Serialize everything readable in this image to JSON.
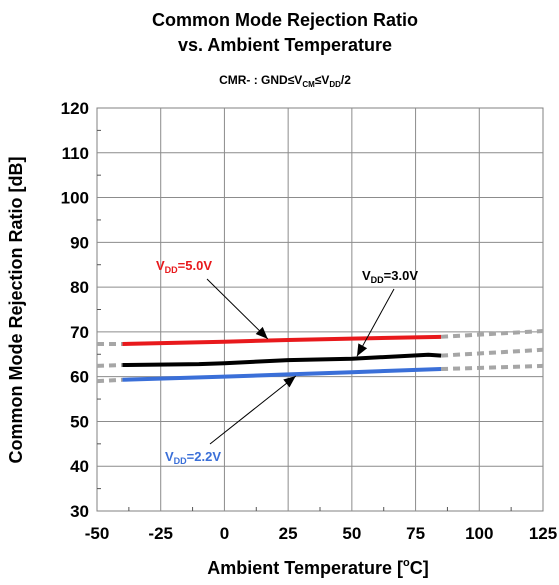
{
  "chart_data": {
    "type": "line",
    "title_line1": "Common Mode Rejection Ratio",
    "title_line2": "vs. Ambient Temperature",
    "subtitle": {
      "prefix": "CMR- : GND≤V",
      "sub1": "CM",
      "mid": "≤V",
      "sub2": "DD",
      "suffix": "/2"
    },
    "xlabel": "Ambient Temperature [°C]",
    "xlabel_parts": {
      "main": "Ambient Temperature [",
      "sup": "o",
      "end": "C]"
    },
    "ylabel": "Common Mode Rejection Ratio [dB]",
    "xlim": [
      -50,
      125
    ],
    "ylim": [
      30,
      120
    ],
    "xticks": [
      -50,
      -25,
      0,
      25,
      50,
      75,
      100,
      125
    ],
    "yticks": [
      30,
      40,
      50,
      60,
      70,
      80,
      90,
      100,
      110,
      120
    ],
    "grid": true,
    "series": [
      {
        "name": "VDD=5.0V",
        "label_parts": {
          "v": "V",
          "sub": "DD",
          "rest": "=5.0V"
        },
        "color": "#e8191c",
        "x": [
          -40,
          0,
          25,
          50,
          85
        ],
        "y": [
          67.3,
          67.8,
          68.2,
          68.5,
          68.9
        ],
        "extrapolated": {
          "left": [
            -50,
            67.3
          ],
          "right": [
            125,
            70.2
          ]
        }
      },
      {
        "name": "VDD=3.0V",
        "label_parts": {
          "v": "V",
          "sub": "DD",
          "rest": "=3.0V"
        },
        "color": "#000000",
        "x": [
          -40,
          -10,
          0,
          25,
          50,
          80,
          85
        ],
        "y": [
          62.6,
          62.8,
          63.0,
          63.7,
          64.0,
          64.9,
          64.7
        ],
        "extrapolated": {
          "left": [
            -50,
            62.4
          ],
          "right": [
            125,
            66.0
          ]
        }
      },
      {
        "name": "VDD=2.2V",
        "label_parts": {
          "v": "V",
          "sub": "DD",
          "rest": "=2.2V"
        },
        "color": "#3a6fd8",
        "x": [
          -40,
          0,
          25,
          50,
          85
        ],
        "y": [
          59.3,
          60.0,
          60.5,
          61.0,
          61.7
        ],
        "extrapolated": {
          "left": [
            -50,
            59.0
          ],
          "right": [
            125,
            62.4
          ]
        }
      }
    ]
  }
}
